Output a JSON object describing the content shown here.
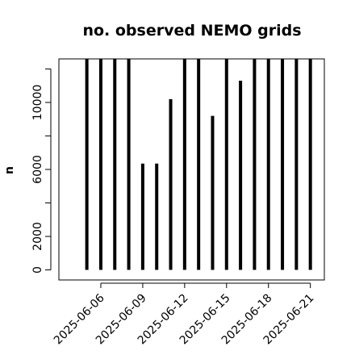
{
  "chart_data": {
    "type": "bar",
    "title": "no. observed NEMO grids",
    "xlabel": "",
    "ylabel": "n",
    "x": [
      "2025-06-05",
      "2025-06-06",
      "2025-06-07",
      "2025-06-08",
      "2025-06-09",
      "2025-06-10",
      "2025-06-11",
      "2025-06-12",
      "2025-06-13",
      "2025-06-14",
      "2025-06-15",
      "2025-06-16",
      "2025-06-17",
      "2025-06-18",
      "2025-06-19",
      "2025-06-20",
      "2025-06-21"
    ],
    "values": [
      12600,
      12600,
      12600,
      12600,
      6350,
      6350,
      10200,
      12600,
      12600,
      9200,
      12600,
      11300,
      12600,
      12600,
      12600,
      12600,
      12600
    ],
    "xticks": [
      "2025-06-06",
      "2025-06-09",
      "2025-06-12",
      "2025-06-15",
      "2025-06-18",
      "2025-06-21"
    ],
    "yticks": [
      0,
      2000,
      4000,
      6000,
      8000,
      10000,
      12000
    ],
    "ytick_labels": [
      "0",
      "2000",
      "",
      "6000",
      "",
      "10000",
      ""
    ],
    "ylim": [
      -600,
      12600
    ],
    "xlim": [
      "2025-06-03",
      "2025-06-22"
    ],
    "grid": false,
    "legend": "none",
    "bar_color": "#000000"
  }
}
